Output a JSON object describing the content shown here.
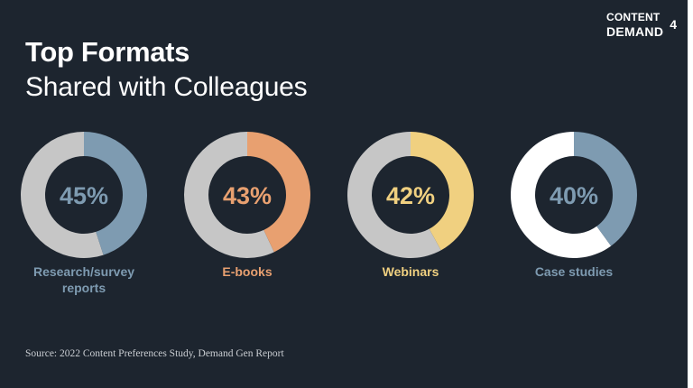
{
  "header": {
    "title": "Top Formats",
    "subtitle": "Shared with Colleagues"
  },
  "logo": {
    "line1": "CONTENT",
    "line2": "DEMAND",
    "number": "4"
  },
  "source": "Source: 2022 Content Preferences Study, Demand Gen Report",
  "chart_data": {
    "type": "pie",
    "subtype": "donut",
    "items": [
      {
        "category": "Research/survey reports",
        "label_lines": [
          "Research/survey",
          "reports"
        ],
        "value": 45,
        "value_label": "45%",
        "color": "#7e9bb1",
        "track_color": "#c6c6c6"
      },
      {
        "category": "E-books",
        "label_lines": [
          "E-books"
        ],
        "value": 43,
        "value_label": "43%",
        "color": "#e8a070",
        "track_color": "#c6c6c6"
      },
      {
        "category": "Webinars",
        "label_lines": [
          "Webinars"
        ],
        "value": 42,
        "value_label": "42%",
        "color": "#f0d080",
        "track_color": "#c6c6c6"
      },
      {
        "category": "Case studies",
        "label_lines": [
          "Case studies"
        ],
        "value": 40,
        "value_label": "40%",
        "color": "#7e9bb1",
        "track_color": "#ffffff"
      }
    ],
    "unit": "%",
    "max": 100
  }
}
